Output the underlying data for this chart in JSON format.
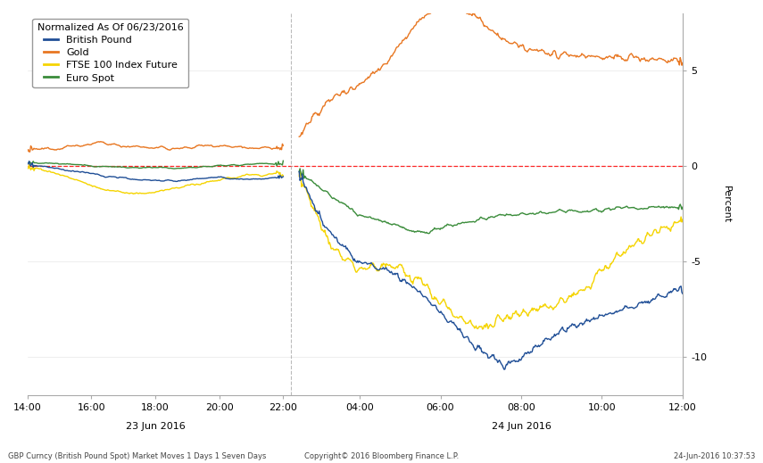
{
  "title": "Normalized As Of 06/23/2016",
  "legend_labels": [
    "British Pound",
    "Gold",
    "FTSE 100 Index Future",
    "Euro Spot"
  ],
  "legend_colors": [
    "#1f4e96",
    "#e87722",
    "#f5d400",
    "#3a8c3a"
  ],
  "line_colors": {
    "pound": "#1f4e96",
    "gold": "#e87722",
    "ftse": "#f5d400",
    "euro": "#3a8c3a"
  },
  "ylabel": "Percent",
  "ylim": [
    -12,
    8
  ],
  "yticks": [
    -10,
    -5,
    0,
    5
  ],
  "background_color": "#ffffff",
  "footer_left": "GBP Curncy (British Pound Spot) Market Moves 1 Days 1 Seven Days",
  "footer_center": "Copyright© 2016 Bloomberg Finance L.P.",
  "footer_right": "24-Jun-2016 10:37:53",
  "date_label_left": "23 Jun 2016",
  "date_label_right": "24 Jun 2016",
  "xtick_labels_left": [
    "14:00",
    "16:00",
    "18:00",
    "20:00",
    "22:00"
  ],
  "xtick_labels_right": [
    "04:00",
    "06:00",
    "08:00",
    "10:00",
    "12:00"
  ]
}
